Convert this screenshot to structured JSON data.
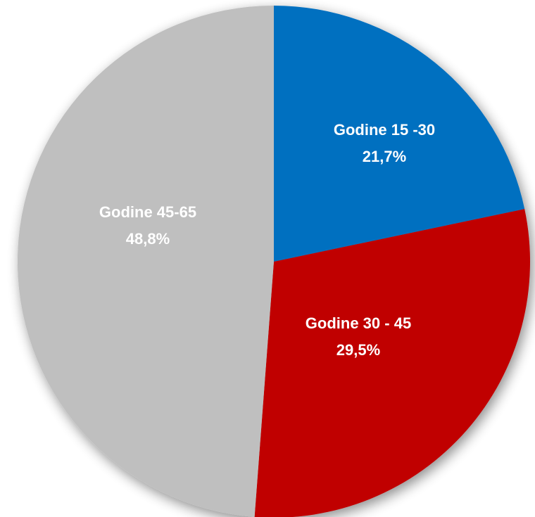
{
  "chart_data": {
    "type": "pie",
    "title": "",
    "slices": [
      {
        "label": "Godine 15 -30",
        "value_label": "21,7%",
        "value": 21.7,
        "color": "#0070C0"
      },
      {
        "label": "Godine 30 - 45",
        "value_label": "29,5%",
        "value": 29.5,
        "color": "#C00000"
      },
      {
        "label": "Godine 45-65",
        "value_label": "48,8%",
        "value": 48.8,
        "color": "#BFBFBF"
      }
    ],
    "start_angle": "12 o'clock",
    "direction": "clockwise",
    "legend": "none",
    "data_labels": "inside"
  }
}
